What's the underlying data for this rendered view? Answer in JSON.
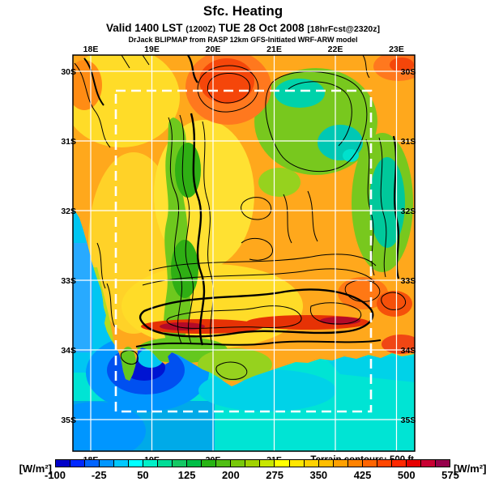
{
  "title": "Sfc. Heating",
  "subtitle": {
    "part1": "Valid 1400 LST",
    "part2": "(1200Z)",
    "part3": "TUE 28 Oct 2008",
    "part4": "[18hrFcst@2320z]"
  },
  "attribution": "DrJack BLIPMAP from RASP 12km GFS-Initiated WRF-ARW model",
  "map": {
    "top_axis_labels": [
      "18E",
      "19E",
      "20E",
      "21E",
      "22E",
      "23E"
    ],
    "bottom_axis_labels": [
      "18E",
      "19E",
      "20E",
      "21E"
    ],
    "left_axis_labels": [
      "30S",
      "31S",
      "32S",
      "33S",
      "34S",
      "35S"
    ],
    "right_axis_labels": [
      "30S",
      "31S",
      "32S",
      "33S",
      "34S",
      "35S"
    ],
    "terrain_note": "Terrain contours: 500 ft"
  },
  "colorbar": {
    "units_left": "[W/m²]",
    "units_right": "[W/m²]",
    "tick_labels": [
      "-100",
      "-25",
      "50",
      "125",
      "200",
      "275",
      "350",
      "425",
      "500",
      "575"
    ],
    "min_value": -100,
    "max_value": 575,
    "segment_step": 25,
    "segment_colors": [
      "#0000C8",
      "#0028FF",
      "#0064FF",
      "#0096FF",
      "#00C8FF",
      "#00FFFF",
      "#00F0C8",
      "#00DC96",
      "#14C864",
      "#00BE46",
      "#28B414",
      "#50BE14",
      "#78C80A",
      "#A0D200",
      "#C8E600",
      "#FFFF00",
      "#FFE600",
      "#FFD200",
      "#FFBE00",
      "#FFA000",
      "#FF8200",
      "#FF6400",
      "#FF4600",
      "#FF2800",
      "#E60000",
      "#C80032",
      "#96004B"
    ]
  },
  "colors": {
    "ocean": "#00E4D4",
    "land": "#FFA81C",
    "grid": "#FFFFFF",
    "contour": "#000000",
    "domain_box": "#FFFFFF"
  }
}
